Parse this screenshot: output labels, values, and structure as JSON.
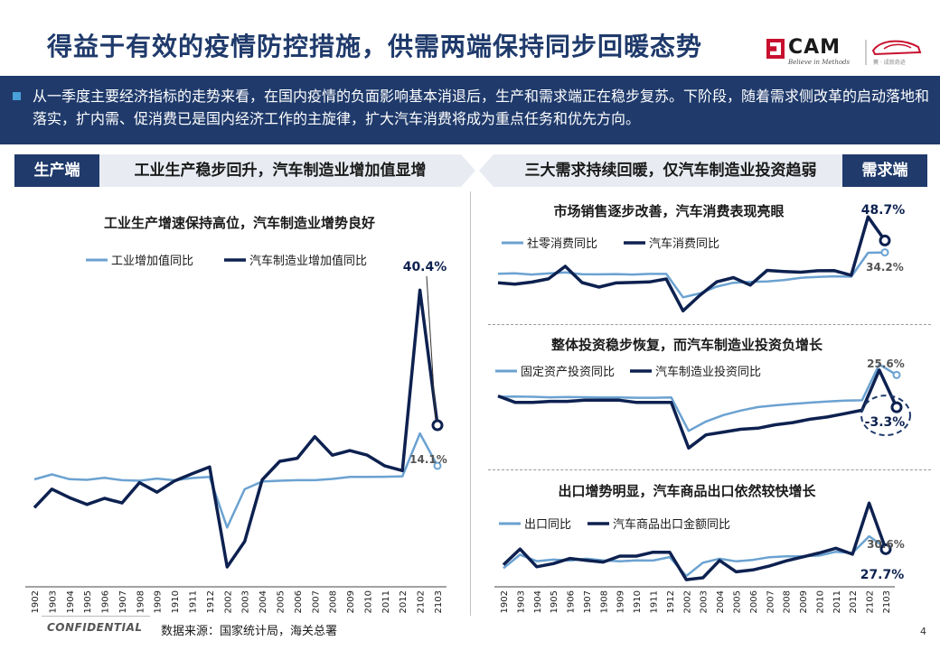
{
  "title": "得益于有效的疫情防控措施，供需两端保持同步回暖态势",
  "logo": {
    "cam": "CAM",
    "tagline": "Believe in Methods",
    "partner": "賽 · 成就奇迹"
  },
  "banner": {
    "text": "从一季度主要经济指标的走势来看，在国内疫情的负面影响基本消退后，生产和需求端正在稳步复苏。下阶段，随着需求侧改革的启动落地和落实，扩内需、促消费已是国内经济工作的主旋律，扩大汽车消费将成为重点任务和优先方向。"
  },
  "sections": {
    "supply_tag": "生产端",
    "supply_headline": "工业生产稳步回升，汽车制造业增加值显增",
    "demand_headline": "三大需求持续回暖，仅汽车制造业投资趋弱",
    "demand_tag": "需求端"
  },
  "colors": {
    "navy": "#0d2150",
    "light_blue": "#6ba2d1",
    "banner": "#1f3a6b"
  },
  "chart_data": [
    {
      "id": "industry",
      "type": "line",
      "title": "工业生产增速保持高位，汽车制造业增势良好",
      "categories": [
        "1902",
        "1903",
        "1904",
        "1905",
        "1906",
        "1907",
        "1908",
        "1909",
        "1910",
        "1911",
        "1912",
        "2002",
        "2003",
        "2004",
        "2005",
        "2006",
        "2007",
        "2008",
        "2009",
        "2010",
        "2011",
        "2012",
        "2102",
        "2103"
      ],
      "series": [
        {
          "name": "工业增加值同比",
          "color": "light",
          "values": [
            5.3,
            8.5,
            5.4,
            5.0,
            6.3,
            4.8,
            4.4,
            5.8,
            4.7,
            6.2,
            6.9,
            -25.9,
            -1.1,
            3.9,
            4.4,
            4.8,
            4.8,
            5.6,
            6.9,
            6.9,
            7.0,
            7.3,
            35.1,
            14.1
          ]
        },
        {
          "name": "汽车制造业增加值同比",
          "color": "navy",
          "values": [
            -13.0,
            -1.0,
            -6.5,
            -11.0,
            -7.0,
            -10.0,
            3.2,
            -3.0,
            4.3,
            9.0,
            13.4,
            -51.5,
            -35.0,
            5.0,
            17.0,
            19.0,
            33.0,
            21.0,
            24.0,
            21.0,
            14.0,
            11.0,
            128.0,
            40.4
          ]
        }
      ],
      "annotations": [
        {
          "label": "40.4%",
          "series": 1,
          "index": 23
        },
        {
          "label": "14.1%",
          "series": 0,
          "index": 23
        }
      ]
    },
    {
      "id": "retail",
      "type": "line",
      "title": "市场销售逐步改善，汽车消费表现亮眼",
      "categories": [
        "1902",
        "1903",
        "1904",
        "1905",
        "1906",
        "1907",
        "1908",
        "1909",
        "1910",
        "1911",
        "1912",
        "2002",
        "2003",
        "2004",
        "2005",
        "2006",
        "2007",
        "2008",
        "2009",
        "2010",
        "2011",
        "2012",
        "2102",
        "2103"
      ],
      "series": [
        {
          "name": "社零消费同比",
          "color": "light",
          "values": [
            8.2,
            8.7,
            7.2,
            8.6,
            9.8,
            7.6,
            7.5,
            7.8,
            7.2,
            8.0,
            8.0,
            -20.5,
            -15.8,
            -7.5,
            -2.8,
            -1.8,
            -1.1,
            0.5,
            3.3,
            4.3,
            5.0,
            4.6,
            33.8,
            34.2
          ]
        },
        {
          "name": "汽车消费同比",
          "color": "navy",
          "values": [
            -2.8,
            -4.4,
            -2.0,
            2.0,
            17.2,
            -2.6,
            -8.1,
            -3.0,
            -2.5,
            -1.8,
            1.8,
            -37.0,
            -18.1,
            -1.7,
            3.5,
            -5.6,
            12.3,
            11.0,
            10.1,
            11.9,
            12.0,
            6.4,
            77.6,
            48.7
          ]
        }
      ],
      "annotations": [
        {
          "label": "48.7%",
          "series": 1,
          "index": 23
        },
        {
          "label": "34.2%",
          "series": 0,
          "index": 23
        }
      ]
    },
    {
      "id": "investment",
      "type": "line",
      "title": "整体投资稳步恢复，而汽车制造业投资负增长",
      "categories": [
        "1902",
        "1903",
        "1904",
        "1905",
        "1906",
        "1907",
        "1908",
        "1909",
        "1910",
        "1911",
        "1912",
        "2002",
        "2003",
        "2004",
        "2005",
        "2006",
        "2007",
        "2008",
        "2009",
        "2010",
        "2011",
        "2012",
        "2102",
        "2103"
      ],
      "series": [
        {
          "name": "固定资产投资同比",
          "color": "light",
          "values": [
            6.1,
            6.3,
            6.1,
            5.6,
            5.8,
            5.7,
            5.5,
            5.4,
            5.2,
            5.2,
            5.4,
            -24.5,
            -16.1,
            -10.3,
            -6.3,
            -3.1,
            -1.6,
            -0.3,
            0.8,
            1.8,
            2.6,
            2.9,
            35.0,
            25.6
          ]
        },
        {
          "name": "汽车制造业投资同比",
          "color": "navy",
          "values": [
            6.8,
            1.0,
            1.0,
            2.0,
            2.0,
            3.0,
            3.0,
            3.0,
            1.0,
            1.0,
            1.0,
            -39.8,
            -28.0,
            -25.5,
            -23.0,
            -22.0,
            -19.0,
            -17.0,
            -14.0,
            -12.0,
            -9.0,
            -6.0,
            30.0,
            -3.3
          ]
        }
      ],
      "annotations": [
        {
          "label": "25.6%",
          "series": 0,
          "index": 23
        },
        {
          "label": "-3.3%",
          "series": 1,
          "index": 23
        }
      ]
    },
    {
      "id": "export",
      "type": "line",
      "title": "出口增势明显，汽车商品出口依然较快增长",
      "categories": [
        "1902",
        "1903",
        "1904",
        "1905",
        "1906",
        "1907",
        "1908",
        "1909",
        "1910",
        "1911",
        "1912",
        "2002",
        "2003",
        "2004",
        "2005",
        "2006",
        "2007",
        "2008",
        "2009",
        "2010",
        "2011",
        "2012",
        "2102",
        "2103"
      ],
      "series": [
        {
          "name": "出口同比",
          "color": "light",
          "values": [
            -20.8,
            13.8,
            -2.7,
            1.1,
            -1.3,
            3.3,
            -1.0,
            -3.2,
            -0.9,
            -1.1,
            7.6,
            -40.6,
            -6.6,
            3.5,
            -3.3,
            0.5,
            7.2,
            9.5,
            9.9,
            11.4,
            21.1,
            18.1,
            60.6,
            30.6
          ]
        },
        {
          "name": "汽车商品出口金额同比",
          "color": "navy",
          "values": [
            -12.0,
            28.0,
            -17.0,
            -9.0,
            4.0,
            -1.0,
            -5.0,
            10.0,
            10.0,
            20.0,
            20.0,
            -50.0,
            -45.0,
            -1.0,
            -30.0,
            -25.0,
            -15.0,
            -2.0,
            8.0,
            18.0,
            30.0,
            15.0,
            145.0,
            27.7
          ]
        }
      ],
      "annotations": [
        {
          "label": "30.6%",
          "series": 0,
          "index": 23
        },
        {
          "label": "27.7%",
          "series": 1,
          "index": 23
        }
      ]
    }
  ],
  "footer": {
    "confidential": "CONFIDENTIAL",
    "source": "数据来源：国家统计局，海关总署",
    "page": "4"
  }
}
